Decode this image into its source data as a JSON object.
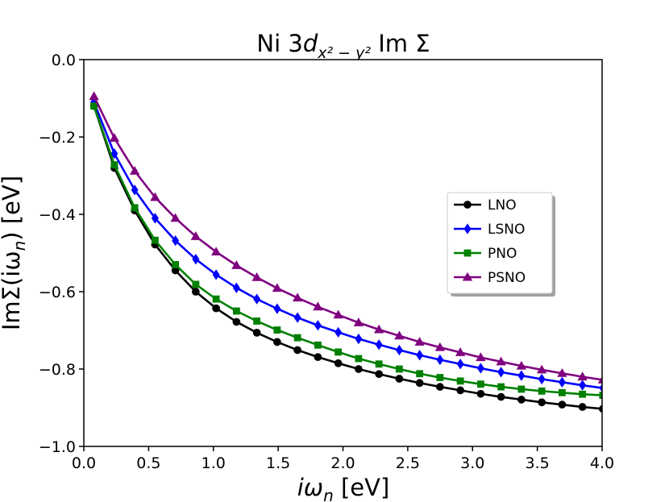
{
  "chart_data": {
    "type": "line",
    "title": {
      "prefix": "Ni 3",
      "main": "d",
      "subscript": "x² − y²",
      "suffix": " Im Σ"
    },
    "xlabel": {
      "main": "iω",
      "subscript": "n",
      "suffix": " [eV]"
    },
    "ylabel": {
      "prefix": "ImΣ(iω",
      "subscript": "n",
      "suffix": ") [eV]"
    },
    "xlim": [
      0.0,
      4.0
    ],
    "ylim": [
      -1.0,
      0.0
    ],
    "xticks": [
      0.0,
      0.5,
      1.0,
      1.5,
      2.0,
      2.5,
      3.0,
      3.5,
      4.0
    ],
    "xtick_labels": [
      "0.0",
      "0.5",
      "1.0",
      "1.5",
      "2.0",
      "2.5",
      "3.0",
      "3.5",
      "4.0"
    ],
    "yticks": [
      -1.0,
      -0.8,
      -0.6,
      -0.4,
      -0.2,
      0.0
    ],
    "ytick_labels": [
      "−1.0",
      "−0.8",
      "−0.6",
      "−0.4",
      "−0.2",
      "0.0"
    ],
    "legend_position": "center-right",
    "x": [
      0.0785,
      0.2356,
      0.3927,
      0.5498,
      0.7069,
      0.8639,
      1.021,
      1.1781,
      1.3352,
      1.4923,
      1.6493,
      1.8064,
      1.9635,
      2.1206,
      2.2777,
      2.4347,
      2.5918,
      2.7489,
      2.906,
      3.0631,
      3.2201,
      3.3772,
      3.5343,
      3.6914,
      3.8485,
      4.0055
    ],
    "series": [
      {
        "name": "LNO",
        "color": "#000000",
        "marker": "circle",
        "values": [
          -0.12,
          -0.28,
          -0.39,
          -0.478,
          -0.545,
          -0.6,
          -0.643,
          -0.678,
          -0.706,
          -0.73,
          -0.751,
          -0.769,
          -0.785,
          -0.8,
          -0.813,
          -0.825,
          -0.836,
          -0.846,
          -0.855,
          -0.864,
          -0.872,
          -0.879,
          -0.886,
          -0.892,
          -0.898,
          -0.903
        ]
      },
      {
        "name": "LSNO",
        "color": "#0000ff",
        "marker": "diamond",
        "values": [
          -0.11,
          -0.243,
          -0.337,
          -0.41,
          -0.468,
          -0.516,
          -0.556,
          -0.59,
          -0.619,
          -0.644,
          -0.667,
          -0.687,
          -0.705,
          -0.722,
          -0.737,
          -0.751,
          -0.764,
          -0.776,
          -0.787,
          -0.798,
          -0.808,
          -0.817,
          -0.826,
          -0.834,
          -0.842,
          -0.849
        ]
      },
      {
        "name": "PNO",
        "color": "#008000",
        "marker": "square",
        "values": [
          -0.12,
          -0.272,
          -0.383,
          -0.467,
          -0.53,
          -0.581,
          -0.619,
          -0.65,
          -0.676,
          -0.699,
          -0.719,
          -0.738,
          -0.756,
          -0.773,
          -0.787,
          -0.8,
          -0.812,
          -0.822,
          -0.831,
          -0.839,
          -0.846,
          -0.852,
          -0.857,
          -0.861,
          -0.865,
          -0.868
        ]
      },
      {
        "name": "PSNO",
        "color": "#800080",
        "marker": "triangle",
        "values": [
          -0.095,
          -0.203,
          -0.288,
          -0.356,
          -0.41,
          -0.457,
          -0.497,
          -0.532,
          -0.563,
          -0.591,
          -0.616,
          -0.639,
          -0.66,
          -0.68,
          -0.698,
          -0.714,
          -0.73,
          -0.744,
          -0.757,
          -0.77,
          -0.781,
          -0.792,
          -0.802,
          -0.811,
          -0.82,
          -0.828
        ]
      }
    ]
  }
}
